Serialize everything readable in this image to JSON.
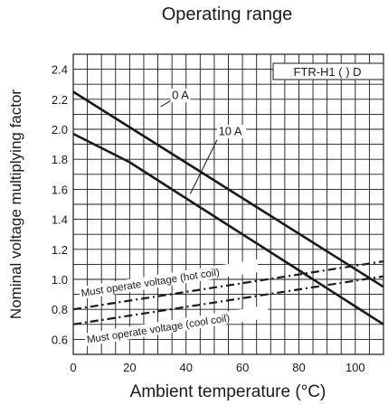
{
  "chart_data": {
    "type": "line",
    "title": "Operating range",
    "xlabel": "Ambient temperature (°C)",
    "ylabel": "Nominal voltage multiplying factor",
    "model_label": "FTR-H1 ( ) D",
    "xlim": [
      0,
      110
    ],
    "ylim": [
      0.5,
      2.5
    ],
    "x_ticks": [
      0,
      20,
      40,
      60,
      80,
      100
    ],
    "x_tick_labels": [
      "0",
      "20",
      "40",
      "60",
      "80",
      "100"
    ],
    "y_ticks": [
      0.6,
      0.8,
      1.0,
      1.2,
      1.4,
      1.6,
      1.8,
      2.0,
      2.2,
      2.4
    ],
    "y_tick_labels": [
      "0.6",
      "0.8",
      "1.0",
      "1.2",
      "1.4",
      "1.6",
      "1.8",
      "2.0",
      "2.2",
      "2.4"
    ],
    "grid": true,
    "series": [
      {
        "name": "0 A",
        "style": "solid",
        "color": "#1a1a1a",
        "x": [
          0,
          110
        ],
        "y": [
          2.25,
          0.95
        ]
      },
      {
        "name": "10 A",
        "style": "solid",
        "color": "#1a1a1a",
        "x": [
          0,
          20,
          40,
          60,
          80,
          100,
          110
        ],
        "y": [
          1.97,
          1.78,
          1.54,
          1.3,
          1.06,
          0.82,
          0.7
        ]
      },
      {
        "name": "Must operate voltage (hot coil)",
        "style": "dashed",
        "color": "#1a1a1a",
        "x": [
          0,
          110
        ],
        "y": [
          0.8,
          1.12
        ]
      },
      {
        "name": "Must operate voltage (cool coil)",
        "style": "dashed",
        "color": "#1a1a1a",
        "x": [
          0,
          110
        ],
        "y": [
          0.7,
          1.02
        ]
      }
    ],
    "annotations": [
      {
        "text": "0 A",
        "series": "0 A"
      },
      {
        "text": "10 A",
        "series": "10 A"
      },
      {
        "text": "Must operate voltage (hot coil)",
        "series": "Must operate voltage (hot coil)"
      },
      {
        "text": "Must operate voltage (cool coil)",
        "series": "Must operate voltage (cool coil)"
      }
    ]
  }
}
